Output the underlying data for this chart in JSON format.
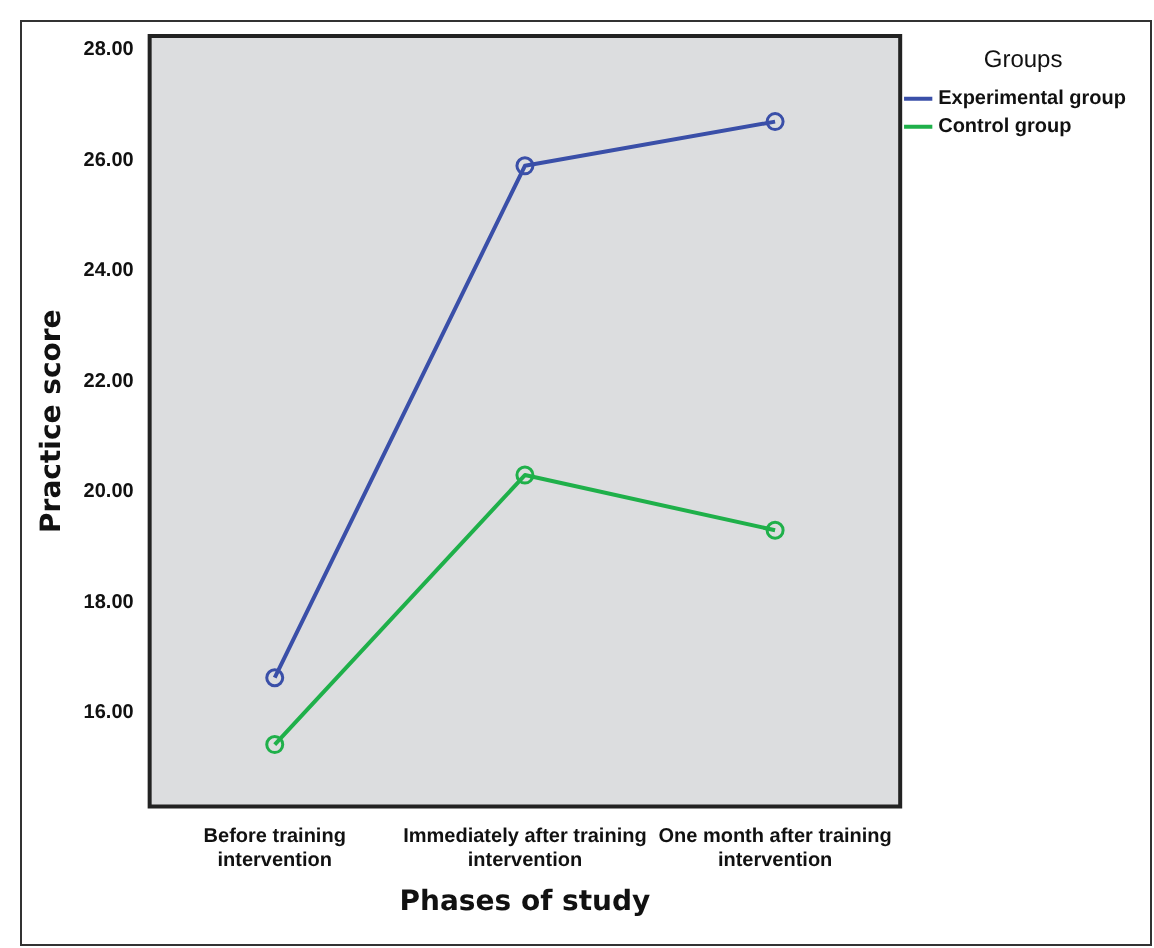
{
  "chart_data": {
    "type": "line",
    "xlabel": "Phases of study",
    "ylabel": "Practice score",
    "legend_title": "Groups",
    "categories": [
      "Before training intervention",
      "Immediately after training intervention",
      "One month after training intervention"
    ],
    "series": [
      {
        "name": "Experimental group",
        "color": "#3a4fa8",
        "values": [
          16.63,
          25.9,
          26.7
        ]
      },
      {
        "name": "Control group",
        "color": "#1fb04a",
        "values": [
          15.42,
          20.3,
          19.3
        ]
      }
    ],
    "ylim": [
      14.3,
      28.25
    ],
    "yticks": [
      {
        "value": 16,
        "label": "16.00"
      },
      {
        "value": 18,
        "label": "18.00"
      },
      {
        "value": 20,
        "label": "20.00"
      },
      {
        "value": 22,
        "label": "22.00"
      },
      {
        "value": 24,
        "label": "24.00"
      },
      {
        "value": 26,
        "label": "26.00"
      },
      {
        "value": 28,
        "label": "28.00"
      }
    ],
    "grid": false,
    "legend": "top right",
    "marker": "circle",
    "line_style": "solid"
  }
}
